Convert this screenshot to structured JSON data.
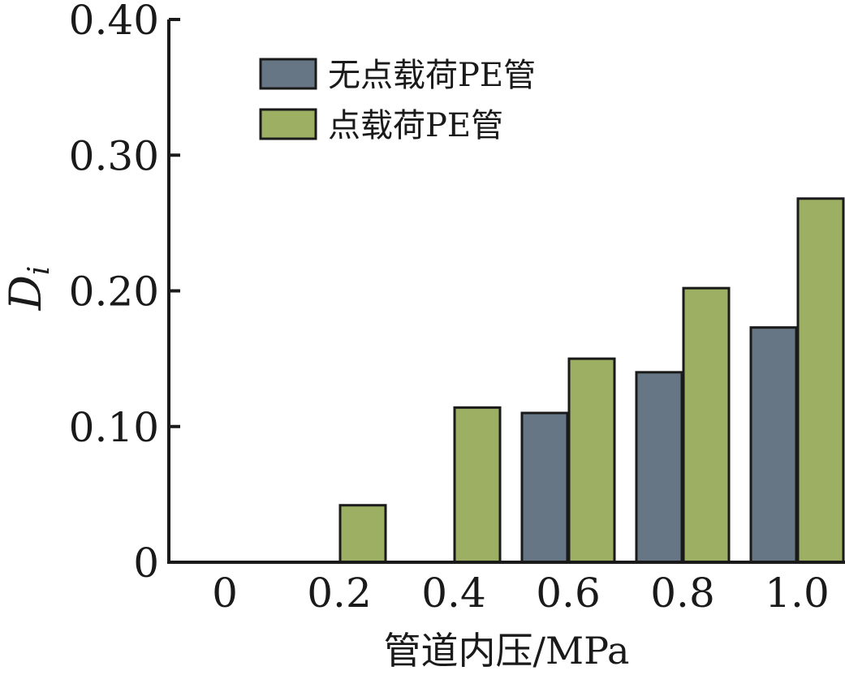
{
  "chart_data": {
    "type": "bar",
    "categories": [
      "0",
      "0.2",
      "0.4",
      "0.6",
      "0.8",
      "1.0"
    ],
    "series": [
      {
        "name": "无点载荷PE管",
        "color": "#667684",
        "values": [
          0,
          0,
          0,
          0.11,
          0.14,
          0.173
        ]
      },
      {
        "name": "点载荷PE管",
        "color": "#9caf63",
        "values": [
          0,
          0.042,
          0.114,
          0.15,
          0.202,
          0.268
        ]
      }
    ],
    "ylim": [
      0,
      0.4
    ],
    "yticks": [
      "0",
      "0.10",
      "0.20",
      "0.30",
      "0.40"
    ],
    "ytick_values": [
      0,
      0.1,
      0.2,
      0.3,
      0.4
    ],
    "xlabel": "管道内压/MPa",
    "ylabel": "D",
    "ylabel_subscript": "i",
    "legend_position": "top-left",
    "grid": false
  }
}
